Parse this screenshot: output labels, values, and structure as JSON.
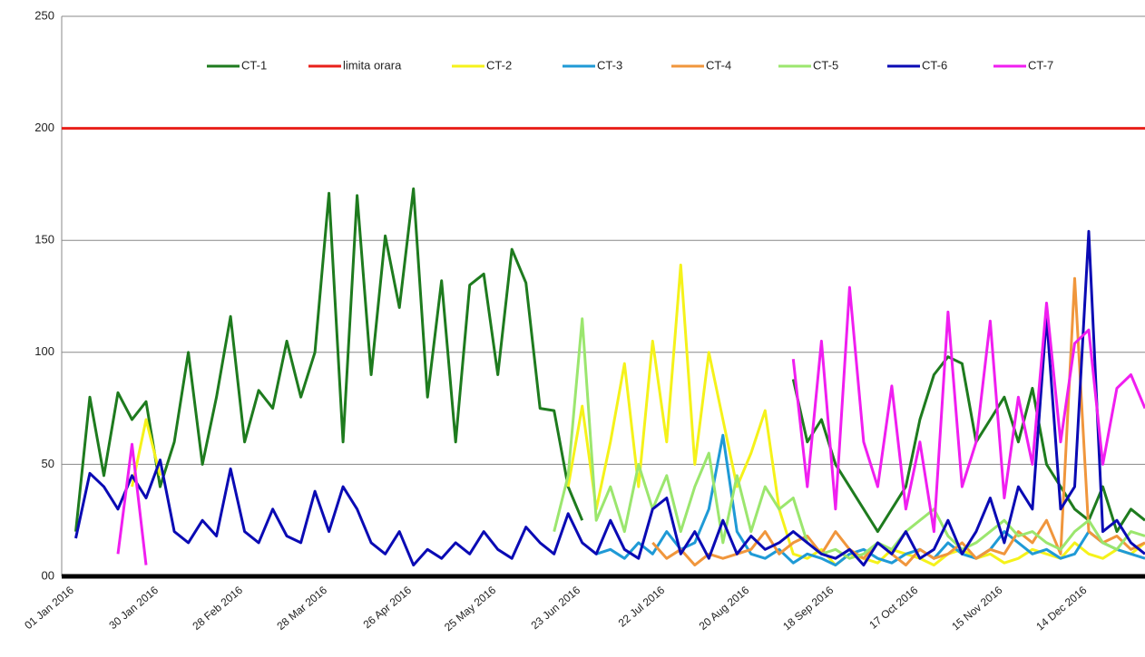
{
  "chart_data": {
    "type": "line",
    "categories": [
      "01 Jan 2016",
      null,
      null,
      null,
      null,
      null,
      "30 Jan 2016",
      null,
      null,
      null,
      null,
      null,
      "28 Feb 2016",
      null,
      null,
      null,
      null,
      null,
      "28 Mar 2016",
      null,
      null,
      null,
      null,
      null,
      "26 Apr 2016",
      null,
      null,
      null,
      null,
      null,
      "25 May 2016",
      null,
      null,
      null,
      null,
      null,
      "23 Jun 2016",
      null,
      null,
      null,
      null,
      null,
      "22 Jul 2016",
      null,
      null,
      null,
      null,
      null,
      "20 Aug 2016",
      null,
      null,
      null,
      null,
      null,
      "18 Sep 2016",
      null,
      null,
      null,
      null,
      null,
      "17 Oct 2016",
      null,
      null,
      null,
      null,
      null,
      "15 Nov 2016",
      null,
      null,
      null,
      null,
      null,
      "14 Dec 2016",
      null,
      null,
      null,
      null,
      null
    ],
    "series": [
      {
        "name": "CT-1",
        "color": "#1e7b1e",
        "values": [
          null,
          20,
          80,
          45,
          82,
          70,
          78,
          40,
          60,
          100,
          50,
          80,
          116,
          60,
          83,
          75,
          105,
          80,
          100,
          171,
          60,
          170,
          90,
          152,
          120,
          173,
          80,
          132,
          60,
          130,
          135,
          90,
          146,
          131,
          75,
          74,
          40,
          25,
          null,
          null,
          null,
          null,
          null,
          null,
          null,
          null,
          null,
          null,
          null,
          null,
          null,
          null,
          88,
          60,
          70,
          50,
          40,
          30,
          20,
          30,
          40,
          70,
          90,
          98,
          95,
          60,
          70,
          80,
          60,
          84,
          50,
          40,
          30,
          25,
          40,
          20,
          30,
          25
        ]
      },
      {
        "name": "limita orara",
        "color": "#e8201a",
        "values": [
          200,
          200,
          200,
          200,
          200,
          200,
          200,
          200,
          200,
          200,
          200,
          200,
          200,
          200,
          200,
          200,
          200,
          200,
          200,
          200,
          200,
          200,
          200,
          200,
          200,
          200,
          200,
          200,
          200,
          200,
          200,
          200,
          200,
          200,
          200,
          200,
          200,
          200,
          200,
          200,
          200,
          200,
          200,
          200,
          200,
          200,
          200,
          200,
          200,
          200,
          200,
          200,
          200,
          200,
          200,
          200,
          200,
          200,
          200,
          200,
          200,
          200,
          200,
          200,
          200,
          200,
          200,
          200,
          200,
          200,
          200,
          200,
          200,
          200,
          200,
          200,
          200,
          200
        ]
      },
      {
        "name": "CT-2",
        "color": "#f5f21a",
        "values": [
          null,
          null,
          null,
          null,
          null,
          40,
          70,
          45,
          null,
          null,
          null,
          null,
          null,
          null,
          null,
          null,
          null,
          null,
          null,
          null,
          null,
          null,
          null,
          null,
          null,
          null,
          null,
          null,
          null,
          null,
          null,
          null,
          null,
          null,
          null,
          null,
          40,
          76,
          30,
          60,
          95,
          40,
          105,
          60,
          139,
          50,
          100,
          70,
          40,
          55,
          74,
          30,
          10,
          8,
          12,
          5,
          10,
          8,
          6,
          12,
          10,
          8,
          5,
          10,
          12,
          8,
          10,
          6,
          8,
          12,
          10,
          8,
          15,
          10,
          8,
          12,
          10,
          15
        ]
      },
      {
        "name": "CT-3",
        "color": "#1f9ad6",
        "values": [
          null,
          null,
          null,
          null,
          null,
          null,
          null,
          null,
          null,
          null,
          null,
          null,
          null,
          null,
          null,
          null,
          null,
          null,
          null,
          null,
          null,
          null,
          null,
          null,
          null,
          null,
          null,
          null,
          null,
          null,
          null,
          null,
          null,
          null,
          null,
          null,
          null,
          null,
          10,
          12,
          8,
          15,
          10,
          20,
          12,
          15,
          30,
          63,
          20,
          10,
          8,
          12,
          6,
          10,
          8,
          5,
          10,
          12,
          8,
          6,
          10,
          12,
          8,
          15,
          10,
          8,
          12,
          20,
          15,
          10,
          12,
          8,
          10,
          20,
          15,
          12,
          10,
          8
        ]
      },
      {
        "name": "CT-4",
        "color": "#f0963c",
        "values": [
          null,
          null,
          null,
          null,
          null,
          null,
          null,
          null,
          null,
          null,
          null,
          null,
          null,
          null,
          null,
          null,
          null,
          null,
          null,
          null,
          null,
          null,
          null,
          null,
          null,
          null,
          null,
          null,
          null,
          null,
          null,
          null,
          null,
          null,
          null,
          null,
          null,
          null,
          null,
          null,
          null,
          null,
          15,
          8,
          12,
          5,
          10,
          8,
          10,
          12,
          20,
          10,
          15,
          18,
          10,
          20,
          12,
          8,
          15,
          10,
          5,
          12,
          8,
          10,
          15,
          8,
          12,
          10,
          20,
          15,
          25,
          10,
          133,
          20,
          15,
          18,
          12,
          15
        ]
      },
      {
        "name": "CT-5",
        "color": "#9be66e",
        "values": [
          null,
          null,
          null,
          null,
          null,
          null,
          null,
          null,
          null,
          null,
          null,
          null,
          null,
          null,
          null,
          null,
          null,
          null,
          null,
          null,
          null,
          null,
          null,
          null,
          null,
          null,
          null,
          null,
          null,
          null,
          null,
          null,
          null,
          null,
          null,
          20,
          45,
          115,
          25,
          40,
          20,
          50,
          30,
          45,
          20,
          40,
          55,
          15,
          45,
          20,
          40,
          30,
          35,
          15,
          10,
          12,
          8,
          10,
          15,
          12,
          20,
          25,
          30,
          18,
          12,
          15,
          20,
          25,
          18,
          20,
          15,
          12,
          20,
          25,
          15,
          12,
          20,
          18
        ]
      },
      {
        "name": "CT-6",
        "color": "#0a0ab4",
        "values": [
          null,
          17,
          46,
          40,
          30,
          45,
          35,
          52,
          20,
          15,
          25,
          18,
          48,
          20,
          15,
          30,
          18,
          15,
          38,
          20,
          40,
          30,
          15,
          10,
          20,
          5,
          12,
          8,
          15,
          10,
          20,
          12,
          8,
          22,
          15,
          10,
          28,
          15,
          10,
          25,
          12,
          8,
          30,
          35,
          10,
          20,
          8,
          25,
          10,
          18,
          12,
          15,
          20,
          15,
          10,
          8,
          12,
          5,
          15,
          10,
          20,
          8,
          12,
          25,
          10,
          20,
          35,
          15,
          40,
          30,
          116,
          30,
          40,
          154,
          20,
          25,
          15,
          10
        ]
      },
      {
        "name": "CT-7",
        "color": "#f01ef0",
        "values": [
          null,
          null,
          null,
          null,
          10,
          59,
          5,
          null,
          null,
          null,
          null,
          null,
          null,
          null,
          null,
          null,
          null,
          null,
          null,
          null,
          null,
          null,
          null,
          null,
          null,
          null,
          null,
          null,
          null,
          null,
          null,
          null,
          null,
          null,
          null,
          null,
          null,
          null,
          null,
          null,
          null,
          null,
          null,
          null,
          null,
          null,
          null,
          null,
          null,
          null,
          null,
          null,
          97,
          40,
          105,
          30,
          129,
          60,
          40,
          85,
          30,
          60,
          20,
          118,
          40,
          60,
          114,
          35,
          80,
          50,
          122,
          60,
          104,
          110,
          50,
          84,
          90,
          75
        ]
      }
    ],
    "ylim": [
      0,
      250
    ],
    "yticks": [
      {
        "value": 0,
        "label": "00"
      },
      50,
      100,
      150,
      200,
      250
    ],
    "grid": true,
    "legend": "top"
  }
}
